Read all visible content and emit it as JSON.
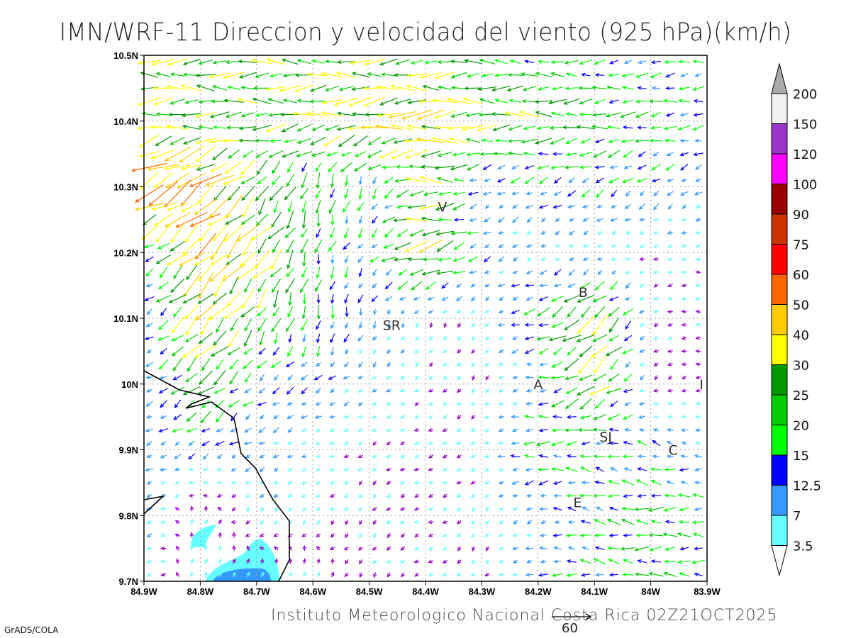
{
  "title": "IMN/WRF-11 Direccion y velocidad del viento (925 hPa)(km/h)",
  "footer": "Instituto Meteorologico Nacional Costa Rica 02Z21OCT2025",
  "credit": "GrADS/COLA",
  "reference_vector": {
    "label": "60",
    "speed": 60
  },
  "cities": [
    {
      "label": "V",
      "lon": -84.37,
      "lat": 10.27
    },
    {
      "label": "B",
      "lon": -84.12,
      "lat": 10.14
    },
    {
      "label": "SR",
      "lon": -84.46,
      "lat": 10.09
    },
    {
      "label": "A",
      "lon": -84.2,
      "lat": 10.0
    },
    {
      "label": "I",
      "lon": -83.91,
      "lat": 10.0
    },
    {
      "label": "SJ",
      "lon": -84.08,
      "lat": 9.92
    },
    {
      "label": "C",
      "lon": -83.96,
      "lat": 9.9
    },
    {
      "label": "E",
      "lon": -84.13,
      "lat": 9.82
    }
  ],
  "chart_data": {
    "type": "vector",
    "title": "IMN/WRF-11 Direccion y velocidad del viento (925 hPa)(km/h)",
    "x_ticks": [
      "84.9W",
      "84.8W",
      "84.7W",
      "84.6W",
      "84.5W",
      "84.4W",
      "84.3W",
      "84.2W",
      "84.1W",
      "84W",
      "83.9W"
    ],
    "y_ticks": [
      "10.5N",
      "10.4N",
      "10.3N",
      "10.2N",
      "10.1N",
      "10N",
      "9.9N",
      "9.8N",
      "9.7N"
    ],
    "xlim": [
      -84.9,
      -83.9
    ],
    "ylim": [
      9.7,
      10.5
    ],
    "grid": true,
    "units": "km/h",
    "colorbar": {
      "labels": [
        "3.5",
        "7",
        "12.5",
        "15",
        "20",
        "25",
        "30",
        "40",
        "50",
        "60",
        "75",
        "90",
        "100",
        "120",
        "150",
        "200"
      ],
      "levels": [
        3.5,
        7,
        12.5,
        15,
        20,
        25,
        30,
        40,
        50,
        60,
        75,
        90,
        100,
        120,
        150,
        200
      ],
      "colors": [
        "#ffffff",
        "#66ffff",
        "#3399ff",
        "#0000ff",
        "#00ff00",
        "#00cc00",
        "#009900",
        "#ffff00",
        "#ffcc00",
        "#ff6600",
        "#ff0000",
        "#cc3300",
        "#990000",
        "#ff00ff",
        "#9933cc",
        "#f2f2f2",
        "#aaaaaa"
      ]
    },
    "low_speed_color": "#9900cc",
    "wind_grid_lats": [
      10.5,
      10.4,
      10.3,
      10.2,
      10.1,
      10.0,
      9.9,
      9.8,
      9.7
    ],
    "wind_grid_lons": [
      -84.9,
      -84.8,
      -84.7,
      -84.6,
      -84.5,
      -84.4,
      -84.3,
      -84.2,
      -84.1,
      -84.0,
      -83.9
    ],
    "wind_grid_uv": [
      [
        [
          -28,
          0
        ],
        [
          -28,
          0
        ],
        [
          -25,
          0
        ],
        [
          -25,
          0
        ],
        [
          -25,
          0
        ],
        [
          -22,
          0
        ],
        [
          -20,
          0
        ],
        [
          -18,
          0
        ],
        [
          -15,
          -1
        ],
        [
          -14,
          -2
        ],
        [
          -13,
          -2
        ]
      ],
      [
        [
          -30,
          -3
        ],
        [
          -25,
          0
        ],
        [
          -25,
          0
        ],
        [
          -28,
          -3
        ],
        [
          -35,
          -6
        ],
        [
          -40,
          -2
        ],
        [
          -28,
          0
        ],
        [
          -25,
          0
        ],
        [
          -22,
          -2
        ],
        [
          -18,
          -2
        ],
        [
          -15,
          -2
        ]
      ],
      [
        [
          -45,
          -25
        ],
        [
          -40,
          -25
        ],
        [
          -15,
          -20
        ],
        [
          -5,
          -20
        ],
        [
          -3,
          -15
        ],
        [
          -30,
          2
        ],
        [
          -8,
          -5
        ],
        [
          -12,
          -6
        ],
        [
          -12,
          -8
        ],
        [
          -10,
          -8
        ],
        [
          -8,
          -5
        ]
      ],
      [
        [
          -10,
          -5
        ],
        [
          -30,
          -30
        ],
        [
          -25,
          -25
        ],
        [
          -5,
          -18
        ],
        [
          -8,
          -8
        ],
        [
          -35,
          -10
        ],
        [
          -10,
          -5
        ],
        [
          -5,
          -3
        ],
        [
          -4,
          -1
        ],
        [
          -3,
          -1
        ],
        [
          -5,
          -1
        ]
      ],
      [
        [
          -8,
          -4
        ],
        [
          -25,
          -25
        ],
        [
          -12,
          -20
        ],
        [
          -2,
          -18
        ],
        [
          -3,
          -10
        ],
        [
          -2,
          -4
        ],
        [
          -2,
          -3
        ],
        [
          -18,
          -5
        ],
        [
          -25,
          -22
        ],
        [
          -3,
          -2
        ],
        [
          -3,
          1
        ]
      ],
      [
        [
          -8,
          -2
        ],
        [
          -20,
          -18
        ],
        [
          -10,
          -8
        ],
        [
          -10,
          -6
        ],
        [
          -6,
          -4
        ],
        [
          -3,
          -3
        ],
        [
          -2,
          -3
        ],
        [
          -10,
          0
        ],
        [
          -25,
          -18
        ],
        [
          -2,
          -2
        ],
        [
          -2,
          0
        ]
      ],
      [
        [
          -9,
          -4
        ],
        [
          -10,
          -6
        ],
        [
          -9,
          -4
        ],
        [
          -5,
          -2
        ],
        [
          -3,
          -2
        ],
        [
          -3,
          -1
        ],
        [
          -4,
          -2
        ],
        [
          -18,
          -1
        ],
        [
          -15,
          2
        ],
        [
          -12,
          5
        ],
        [
          -8,
          0
        ]
      ],
      [
        [
          -8,
          -5
        ],
        [
          2,
          5
        ],
        [
          -3,
          -5
        ],
        [
          -3,
          -4
        ],
        [
          -2,
          -3
        ],
        [
          -3,
          -1
        ],
        [
          -2,
          -4
        ],
        [
          -8,
          -3
        ],
        [
          -15,
          5
        ],
        [
          -20,
          0
        ],
        [
          -15,
          0
        ]
      ],
      [
        [
          -5,
          -3
        ],
        [
          2,
          6
        ],
        [
          2,
          6
        ],
        [
          3,
          5
        ],
        [
          -2,
          -3
        ],
        [
          -3,
          -2
        ],
        [
          -2,
          -3
        ],
        [
          -12,
          0
        ],
        [
          -15,
          2
        ],
        [
          -18,
          0
        ],
        [
          -15,
          0
        ]
      ]
    ]
  }
}
